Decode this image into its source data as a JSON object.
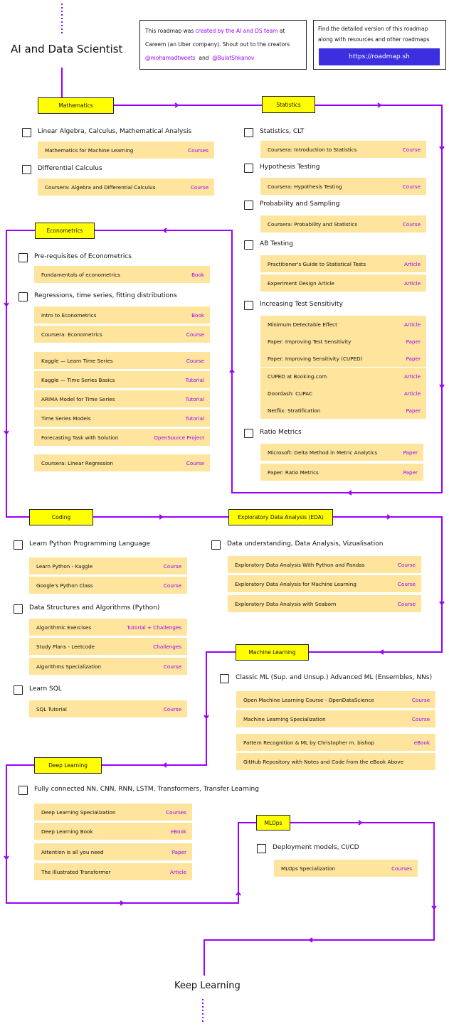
{
  "header": {
    "title": "AI and Data Scientist",
    "end_title": "Keep Learning"
  },
  "info": {
    "text1": "This roadmap was",
    "link_team": "created by the AI and DS team",
    "text2": "at",
    "text3": "Careem (an Uber company). Shout out to the creators",
    "creator1": "@mohamadtweets",
    "and": "and",
    "creator2": "@BulatShkanov",
    "detail_line1": "Find the detailed version of this roadmap",
    "detail_line2": "along with resources and other roadmaps",
    "button": "https://roadmap.sh"
  },
  "colors": {
    "accent": "#9900ff",
    "section": "#ffff00",
    "resource": "#fee49c",
    "button": "#3c2fe0"
  },
  "sections": [
    {
      "label": "Mathematics",
      "topics": [
        {
          "label": "Linear Algebra, Calculus, Mathematical Analysis",
          "resources": [
            {
              "title": "Mathematics for Machine Learning",
              "type": "Courses"
            }
          ]
        },
        {
          "label": "Differential Calculus",
          "resources": [
            {
              "title": "Coursera: Algebra and Differential Calculus",
              "type": "Course"
            }
          ]
        }
      ]
    },
    {
      "label": "Statistics",
      "topics": [
        {
          "label": "Statistics, CLT",
          "resources": [
            {
              "title": "Coursera: Introduction to Statistics",
              "type": "Course"
            }
          ]
        },
        {
          "label": "Hypothesis Testing",
          "resources": [
            {
              "title": "Coursera: Hypothesis Testing",
              "type": "Course"
            }
          ]
        },
        {
          "label": "Probability and Sampling",
          "resources": [
            {
              "title": "Coursera: Probability and Statistics",
              "type": "Course"
            }
          ]
        },
        {
          "label": "AB Testing",
          "resources": [
            {
              "title": "Practitioner's Guide to Statistical Tests",
              "type": "Article"
            },
            {
              "title": "Experiment Design Article",
              "type": "Article"
            }
          ]
        },
        {
          "label": "Increasing Test Sensitivity",
          "resources": [
            {
              "title": "Minimum Detectable Effect",
              "type": "Article"
            },
            {
              "title": "Paper: Improving Test Sensitivity",
              "type": "Paper"
            },
            {
              "title": "Paper: Improving Sensitivity (CUPED)",
              "type": "Paper"
            },
            {
              "title": "CUPED at Booking.com",
              "type": "Article"
            },
            {
              "title": "Doordash: CUPAC",
              "type": "Article"
            },
            {
              "title": "Netflix: Stratification",
              "type": "Paper"
            }
          ]
        },
        {
          "label": "Ratio Metrics",
          "resources": [
            {
              "title": "Microsoft: Delta Method in Metric Analytics",
              "type": "Paper"
            },
            {
              "title": "Paper: Ratio Metrics",
              "type": "Paper"
            }
          ]
        }
      ]
    },
    {
      "label": "Econometrics",
      "topics": [
        {
          "label": "Pre-requisites of Econometrics",
          "resources": [
            {
              "title": "Fundamentals of econometrics",
              "type": "Book"
            }
          ]
        },
        {
          "label": "Regressions, time series, fitting distributions",
          "resources": [
            {
              "title": "Intro to Econometrics",
              "type": "Book"
            },
            {
              "title": "Coursera: Econometrics",
              "type": "Course"
            },
            {
              "title": "Kaggle — Learn Time Series",
              "type": "Course"
            },
            {
              "title": "Kaggle — Time Series Basics",
              "type": "Tutorial"
            },
            {
              "title": "ARIMA Model for Time Series",
              "type": "Tutorial"
            },
            {
              "title": "Time Series Models",
              "type": "Tutorial"
            },
            {
              "title": "Forecasting Task with Solution",
              "type": "OpenSource Project"
            },
            {
              "title": "Coursera: Linear Regression",
              "type": "Course"
            }
          ]
        }
      ]
    },
    {
      "label": "Coding",
      "topics": [
        {
          "label": "Learn Python Programming Language",
          "resources": [
            {
              "title": "Learn Python - Kaggle",
              "type": "Course"
            },
            {
              "title": "Google's Python Class",
              "type": "Course"
            }
          ]
        },
        {
          "label": "Data Structures and Algorithms (Python)",
          "resources": [
            {
              "title": "Algorithmic Exercises",
              "type": "Tutorial + Challenges"
            },
            {
              "title": "Study Plans - Leetcode",
              "type": "Challenges"
            },
            {
              "title": "Algorithms Specialization",
              "type": "Course"
            }
          ]
        },
        {
          "label": "Learn SQL",
          "resources": [
            {
              "title": "SQL Tutorial",
              "type": "Course"
            }
          ]
        }
      ]
    },
    {
      "label": "Exploratory Data Analysis (EDA)",
      "topics": [
        {
          "label": "Data understanding, Data Analysis, Vizualisation",
          "resources": [
            {
              "title": "Exploratory Data Analysis With Python and Pandas",
              "type": "Course"
            },
            {
              "title": "Exploratory Data Analysis for Machine Learning",
              "type": "Course"
            },
            {
              "title": "Exploratory Data Analysis with Seaborn",
              "type": "Course"
            }
          ]
        }
      ]
    },
    {
      "label": "Machine Learning",
      "topics": [
        {
          "label": "Classic ML (Sup. and Unsup.) Advanced ML (Ensembles, NNs)",
          "resources": [
            {
              "title": "Open Machine Learning Course - OpenDataScience",
              "type": "Course"
            },
            {
              "title": "Machine Learning Specialization",
              "type": "Course"
            },
            {
              "title": "Pattern Recognition & ML by Christopher m. bishop",
              "type": "eBook"
            },
            {
              "title": "GitHub Repository with Notes and Code from the eBook Above",
              "type": ""
            }
          ]
        }
      ]
    },
    {
      "label": "Deep Learning",
      "topics": [
        {
          "label": "Fully connected NN, CNN, RNN, LSTM, Transformers, Transfer Learning",
          "resources": [
            {
              "title": "Deep Learning Specialization",
              "type": "Courses"
            },
            {
              "title": "Deep Learning Book",
              "type": "eBook"
            },
            {
              "title": "Attention is all you need",
              "type": "Paper"
            },
            {
              "title": "The Illustrated Transformer",
              "type": "Article"
            }
          ]
        }
      ]
    },
    {
      "label": "MLOps",
      "topics": [
        {
          "label": "Deployment models, CI/CD",
          "resources": [
            {
              "title": "MLOps Specialization",
              "type": "Courses"
            }
          ]
        }
      ]
    }
  ]
}
